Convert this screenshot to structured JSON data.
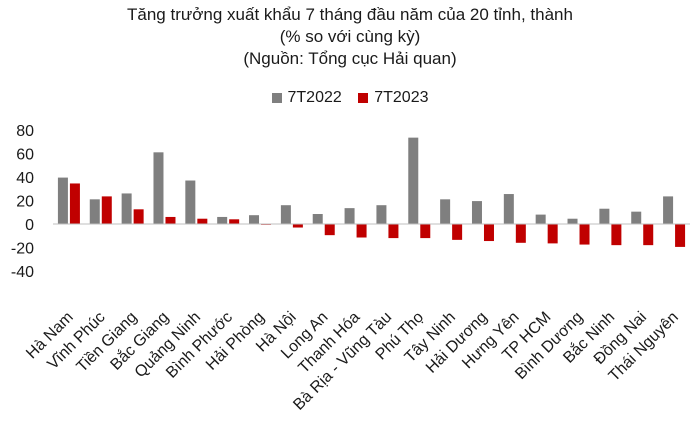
{
  "chart_data": {
    "type": "bar",
    "title": "Tăng trưởng xuất khẩu 7 tháng đầu năm của 20 tỉnh, thành",
    "subtitle": "(% so với cùng kỳ)",
    "source": "(Nguồn: Tổng cục Hải quan)",
    "xlabel": "",
    "ylabel": "",
    "ylim": [
      -40,
      80
    ],
    "yticks": [
      "80",
      "60",
      "40",
      "20",
      "0",
      "-20",
      "-40"
    ],
    "legend_position": "top-center",
    "grid": false,
    "categories": [
      "Hà Nam",
      "Vĩnh Phúc",
      "Tiền Giang",
      "Bắc Giang",
      "Quảng Ninh",
      "Bình Phước",
      "Hải Phòng",
      "Hà Nội",
      "Long An",
      "Thanh Hóa",
      "Bà Rịa - Vũng Tàu",
      "Phú Thọ",
      "Tây Ninh",
      "Hải Dương",
      "Hưng Yên",
      "TP HCM",
      "Bình Dương",
      "Bắc Ninh",
      "Đồng Nai",
      "Thái Nguyên"
    ],
    "series": [
      {
        "name": "7T2022",
        "color": "#7f7f7f",
        "values": [
          39.5,
          21,
          26,
          61,
          37,
          6,
          7.5,
          16,
          8.5,
          13.5,
          16,
          73.5,
          21,
          19.5,
          25.5,
          8,
          4.5,
          13,
          10.5,
          23.5
        ]
      },
      {
        "name": "7T2023",
        "color": "#c00000",
        "values": [
          34.5,
          23.5,
          12.5,
          6,
          4.5,
          4,
          -0.5,
          -3,
          -9.5,
          -11.5,
          -12,
          -12,
          -13.5,
          -14.5,
          -16,
          -16.5,
          -17.5,
          -18,
          -18,
          -19.5
        ]
      }
    ]
  }
}
